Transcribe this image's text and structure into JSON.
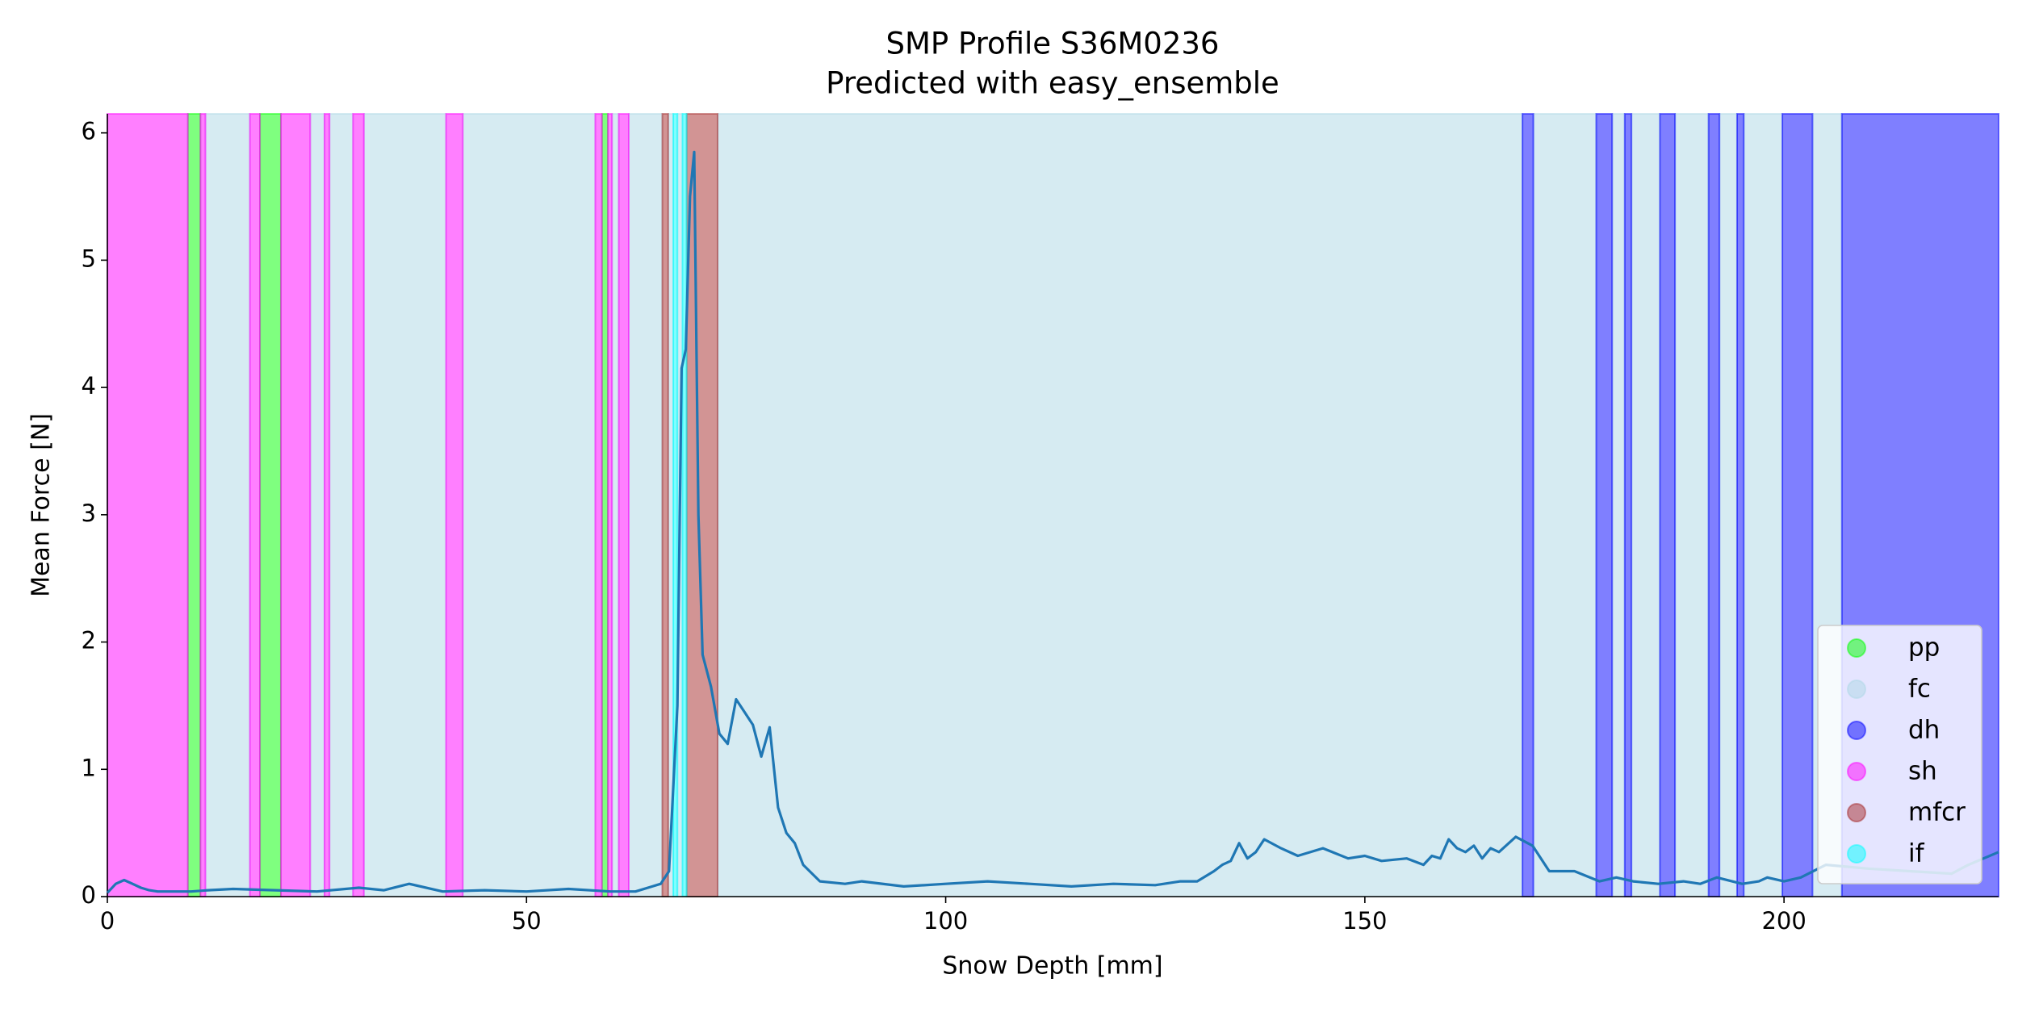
{
  "chart_data": {
    "type": "line",
    "title": "SMP Profile S36M0236",
    "subtitle": "Predicted with easy_ensemble",
    "x_label": "Snow Depth [mm]",
    "y_label": "Mean Force [N]",
    "xlim": [
      0,
      225.6
    ],
    "ylim": [
      0,
      6.15
    ],
    "xticks": [
      0,
      50,
      100,
      150,
      200
    ],
    "yticks": [
      0,
      1,
      2,
      3,
      4,
      5,
      6
    ],
    "color": "#1f77b4",
    "legend": "lower right",
    "classes": [
      {
        "name": "pp",
        "color": "lime",
        "spans": [
          [
            9.6,
            11.1
          ],
          [
            18.2,
            20.7
          ],
          [
            59,
            59.7
          ]
        ]
      },
      {
        "name": "fc",
        "color": "lightblue",
        "spans": [
          [
            11.7,
            17
          ],
          [
            24.2,
            25.9
          ],
          [
            26.5,
            29.3
          ],
          [
            30.6,
            40.4
          ],
          [
            42.4,
            58.2
          ],
          [
            60.2,
            61
          ],
          [
            62.2,
            66.2
          ],
          [
            66.9,
            67.5
          ],
          [
            68,
            68.6
          ],
          [
            72.8,
            168.8
          ],
          [
            170.1,
            177.6
          ],
          [
            179.5,
            181
          ],
          [
            181.8,
            185.2
          ],
          [
            187,
            191
          ],
          [
            192.3,
            194.4
          ],
          [
            195.2,
            199.8
          ],
          [
            203.4,
            206.9
          ]
        ]
      },
      {
        "name": "dh",
        "color": "blue",
        "spans": [
          [
            168.8,
            170.1
          ],
          [
            177.6,
            179.5
          ],
          [
            181,
            181.8
          ],
          [
            185.2,
            187
          ],
          [
            191,
            192.3
          ],
          [
            194.4,
            195.2
          ],
          [
            199.8,
            203.4
          ],
          [
            206.9,
            225.6
          ]
        ]
      },
      {
        "name": "sh",
        "color": "magenta",
        "spans": [
          [
            0,
            9.6
          ],
          [
            11.1,
            11.7
          ],
          [
            17,
            18.2
          ],
          [
            20.7,
            24.2
          ],
          [
            25.9,
            26.5
          ],
          [
            29.3,
            30.6
          ],
          [
            40.4,
            42.4
          ],
          [
            58.2,
            59
          ],
          [
            59.7,
            60.2
          ],
          [
            61,
            62.2
          ]
        ]
      },
      {
        "name": "mfcr",
        "color": "brown",
        "spans": [
          [
            66.2,
            66.9
          ],
          [
            69.1,
            72.8
          ]
        ]
      },
      {
        "name": "if",
        "color": "cyan",
        "spans": [
          [
            67.5,
            68
          ],
          [
            68.6,
            69.1
          ]
        ]
      }
    ],
    "x": [
      0,
      1,
      2,
      3,
      4,
      5,
      6,
      8,
      10,
      12,
      15,
      20,
      25,
      30,
      33,
      36,
      40,
      45,
      50,
      55,
      60,
      63,
      65,
      66,
      67,
      68,
      68.5,
      69,
      69.5,
      70,
      70.5,
      71,
      72,
      73,
      74,
      75,
      76,
      77,
      78,
      79,
      80,
      81,
      82,
      83,
      85,
      88,
      90,
      95,
      100,
      105,
      110,
      115,
      120,
      125,
      128,
      130,
      132,
      133,
      134,
      135,
      136,
      137,
      138,
      140,
      142,
      145,
      148,
      150,
      152,
      155,
      157,
      158,
      159,
      160,
      161,
      162,
      163,
      164,
      165,
      166,
      168,
      170,
      172,
      175,
      178,
      180,
      182,
      185,
      188,
      190,
      192,
      195,
      197,
      198,
      200,
      202,
      205,
      210,
      215,
      220,
      222,
      225.6
    ],
    "values": [
      0.03,
      0.1,
      0.13,
      0.1,
      0.07,
      0.05,
      0.04,
      0.04,
      0.04,
      0.05,
      0.06,
      0.05,
      0.04,
      0.07,
      0.05,
      0.1,
      0.04,
      0.05,
      0.04,
      0.06,
      0.04,
      0.04,
      0.08,
      0.1,
      0.2,
      1.5,
      4.15,
      4.3,
      5.5,
      5.85,
      3.0,
      1.9,
      1.65,
      1.28,
      1.2,
      1.55,
      1.45,
      1.35,
      1.1,
      1.33,
      0.7,
      0.5,
      0.42,
      0.25,
      0.12,
      0.1,
      0.12,
      0.08,
      0.1,
      0.12,
      0.1,
      0.08,
      0.1,
      0.09,
      0.12,
      0.12,
      0.2,
      0.25,
      0.28,
      0.42,
      0.3,
      0.35,
      0.45,
      0.38,
      0.32,
      0.38,
      0.3,
      0.32,
      0.28,
      0.3,
      0.25,
      0.32,
      0.3,
      0.45,
      0.38,
      0.35,
      0.4,
      0.3,
      0.38,
      0.35,
      0.47,
      0.4,
      0.2,
      0.2,
      0.12,
      0.15,
      0.12,
      0.1,
      0.12,
      0.1,
      0.15,
      0.1,
      0.12,
      0.15,
      0.12,
      0.15,
      0.25,
      0.22,
      0.2,
      0.18,
      0.25,
      0.35
    ]
  }
}
